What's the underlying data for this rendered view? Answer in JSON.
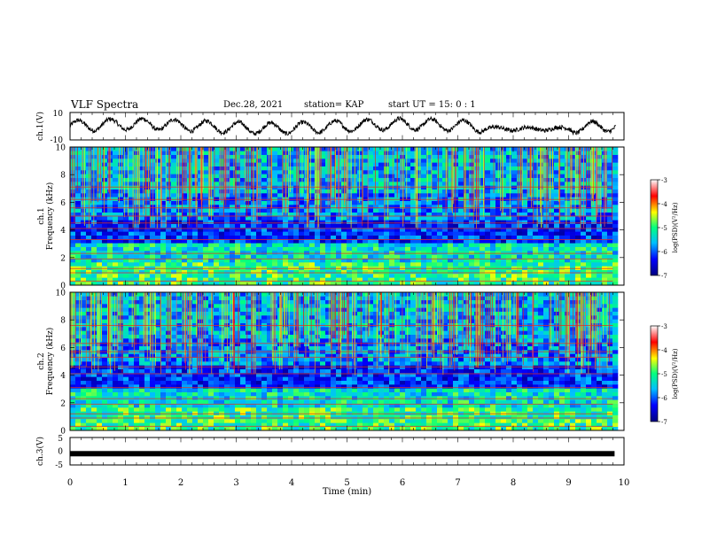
{
  "header": {
    "title": "VLF Spectra",
    "date": "Dec.28, 2021",
    "station": "station= KAP",
    "start": "start  UT =   15: 0  : 1"
  },
  "chart_data": [
    {
      "type": "line",
      "name": "ch1-waveform",
      "ylabel": "ch.1(V)",
      "ylim": [
        -10,
        10
      ],
      "yticks": [
        "10",
        "-10"
      ],
      "xlim": [
        0,
        10
      ]
    },
    {
      "type": "heatmap",
      "name": "ch1-spectrogram",
      "ylabel_line1": "ch.1",
      "ylabel_line2": "Frequency (kHz)",
      "ylim": [
        0,
        10
      ],
      "yticks": [
        0,
        2,
        4,
        6,
        8,
        10
      ],
      "xlim": [
        0,
        10
      ],
      "data_end_min": 9.8,
      "colorbar": {
        "label": "log(PSD)(V²/Hz)",
        "range": [
          -7,
          -3
        ],
        "ticks": [
          -3,
          -4,
          -5,
          -6,
          -7
        ]
      },
      "strong_lines_khz": [
        0.3,
        0.9,
        1.2,
        1.9,
        2.3,
        3.3,
        4.1,
        4.5,
        5.0,
        5.6,
        6.2,
        7.1
      ]
    },
    {
      "type": "heatmap",
      "name": "ch2-spectrogram",
      "ylabel_line1": "ch.2",
      "ylabel_line2": "Frequency (kHz)",
      "ylim": [
        0,
        10
      ],
      "yticks": [
        0,
        2,
        4,
        6,
        8,
        10
      ],
      "xlim": [
        0,
        10
      ],
      "data_end_min": 9.8,
      "colorbar": {
        "label": "log(PSD)(V²/Hz)",
        "range": [
          -7,
          -3
        ],
        "ticks": [
          -3,
          -4,
          -5,
          -6,
          -7
        ]
      },
      "strong_lines_khz": [
        0.3,
        0.9,
        1.2,
        1.9,
        2.3,
        3.1,
        4.1,
        4.6,
        5.3,
        5.7,
        6.3,
        7.6
      ]
    },
    {
      "type": "line",
      "name": "ch3-waveform",
      "ylabel": "ch.3(V)",
      "ylim": [
        -5,
        5
      ],
      "yticks": [
        "5",
        "0",
        "-5"
      ],
      "level": -0.9,
      "xlim": [
        0,
        10
      ],
      "xlabel": "Time (min)",
      "xticks": [
        0,
        1,
        2,
        3,
        4,
        5,
        6,
        7,
        8,
        9,
        10
      ]
    }
  ],
  "colors": {
    "scale": [
      "#000080",
      "#0000ff",
      "#00bfff",
      "#00ff80",
      "#ffff00",
      "#ff0000",
      "#ffffff"
    ]
  }
}
